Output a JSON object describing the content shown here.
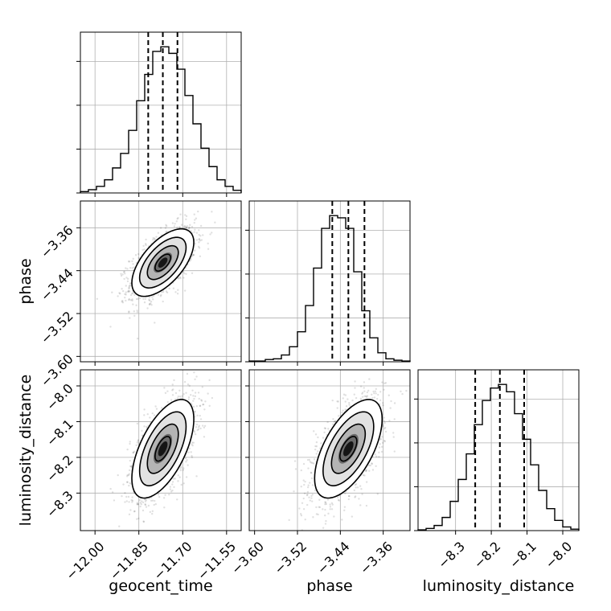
{
  "chart_data": {
    "type": "corner",
    "parameters": [
      "geocent_time",
      "phase",
      "luminosity_distance"
    ],
    "axes": {
      "geocent_time": {
        "range": [
          -12.05,
          -11.5
        ],
        "ticks": [
          -12.0,
          -11.85,
          -11.7,
          -11.55
        ],
        "tick_labels": [
          "−12.00",
          "−11.85",
          "−11.70",
          "−11.55"
        ],
        "quantiles": [
          -11.818,
          -11.768,
          -11.718
        ]
      },
      "phase": {
        "range": [
          -3.61,
          -3.31
        ],
        "ticks": [
          -3.6,
          -3.52,
          -3.44,
          -3.36
        ],
        "tick_labels": [
          "−3.60",
          "−3.52",
          "−3.44",
          "−3.36"
        ],
        "quantiles": [
          -3.455,
          -3.425,
          -3.395
        ]
      },
      "luminosity_distance": {
        "range": [
          -8.405,
          -7.955
        ],
        "ticks": [
          -8.3,
          -8.2,
          -8.1,
          -8.0
        ],
        "tick_labels": [
          "−8.3",
          "−8.2",
          "−8.1",
          "−8.0"
        ],
        "quantiles": [
          -8.245,
          -8.176,
          -8.108
        ]
      }
    },
    "histograms": {
      "geocent_time": {
        "edges": [
          -12.05,
          -11.5
        ],
        "counts": [
          2,
          5,
          10,
          20,
          38,
          60,
          95,
          140,
          180,
          215,
          222,
          212,
          188,
          148,
          105,
          68,
          40,
          20,
          10,
          4
        ]
      },
      "phase": {
        "edges": [
          -3.61,
          -3.31
        ],
        "counts": [
          1,
          1,
          3,
          4,
          9,
          20,
          40,
          75,
          125,
          178,
          195,
          192,
          178,
          120,
          68,
          32,
          12,
          4,
          2,
          1
        ]
      },
      "luminosity_distance": {
        "edges": [
          -8.405,
          -7.955
        ],
        "counts": [
          1,
          3,
          7,
          18,
          40,
          70,
          105,
          145,
          178,
          195,
          200,
          190,
          160,
          125,
          90,
          55,
          30,
          14,
          5,
          2
        ]
      }
    },
    "pairs": [
      {
        "x": "geocent_time",
        "y": "phase",
        "center": [
          -11.768,
          -3.425
        ],
        "sigma": [
          0.053,
          0.0315
        ],
        "rho": 0.6
      },
      {
        "x": "geocent_time",
        "y": "luminosity_distance",
        "center": [
          -11.768,
          -8.176
        ],
        "sigma": [
          0.053,
          0.069
        ],
        "rho": 0.6
      },
      {
        "x": "phase",
        "y": "luminosity_distance",
        "center": [
          -3.425,
          -8.176
        ],
        "sigma": [
          0.0315,
          0.069
        ],
        "rho": 0.6
      }
    ],
    "contour_levels": [
      0.5,
      1.0,
      1.5,
      2.0
    ],
    "grid": true,
    "xlabel_bottom": [
      "geocent_time",
      "phase",
      "luminosity_distance"
    ],
    "ylabel_left": [
      "phase",
      "luminosity_distance"
    ]
  }
}
